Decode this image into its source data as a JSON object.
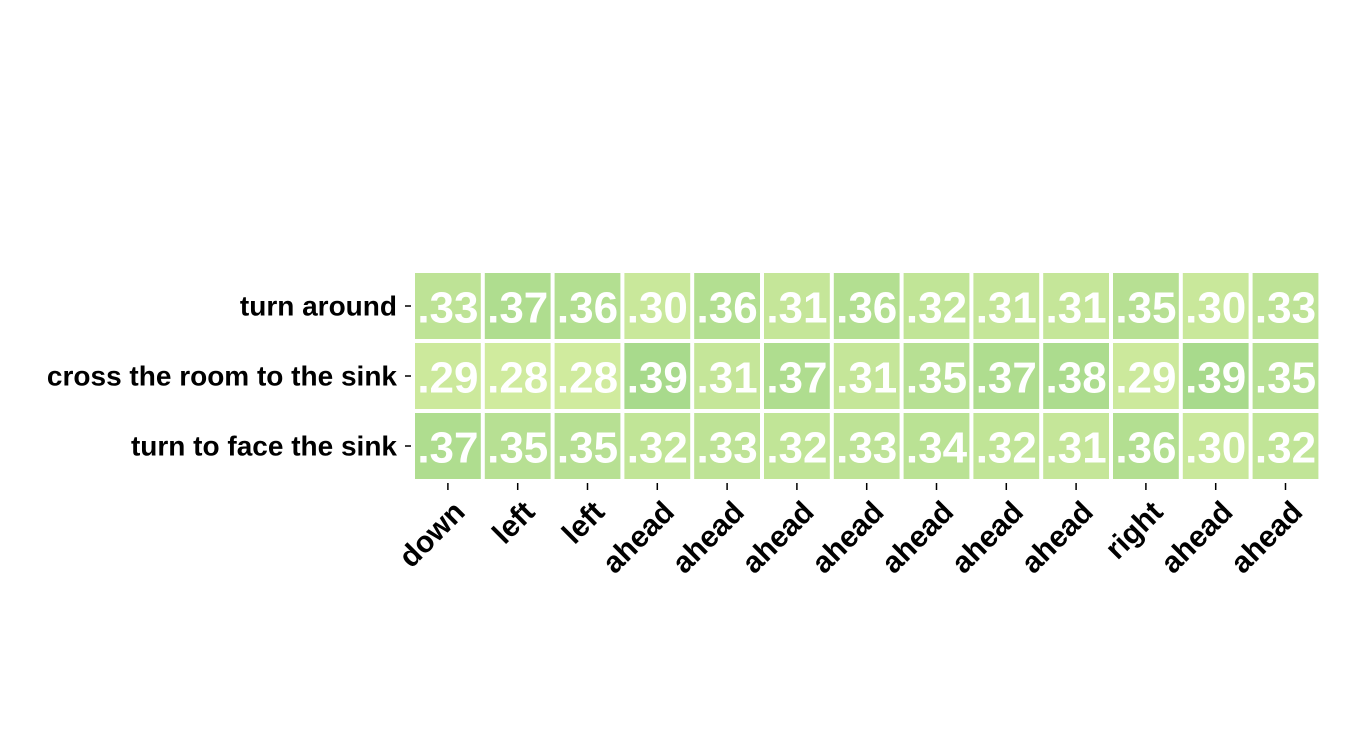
{
  "chart_data": {
    "type": "heatmap",
    "title": "",
    "xlabel": "",
    "ylabel": "",
    "rows": [
      "turn around",
      "cross the room to the sink",
      "turn to face the sink"
    ],
    "columns": [
      "down",
      "left",
      "left",
      "ahead",
      "ahead",
      "ahead",
      "ahead",
      "ahead",
      "ahead",
      "ahead",
      "right",
      "ahead",
      "ahead"
    ],
    "values": [
      [
        0.33,
        0.37,
        0.36,
        0.3,
        0.36,
        0.31,
        0.36,
        0.32,
        0.31,
        0.31,
        0.35,
        0.3,
        0.33
      ],
      [
        0.29,
        0.28,
        0.28,
        0.39,
        0.31,
        0.37,
        0.31,
        0.35,
        0.37,
        0.38,
        0.29,
        0.39,
        0.35
      ],
      [
        0.37,
        0.35,
        0.35,
        0.32,
        0.33,
        0.32,
        0.33,
        0.34,
        0.32,
        0.31,
        0.36,
        0.3,
        0.32
      ]
    ],
    "cell_labels": [
      [
        ".33",
        ".37",
        ".36",
        ".30",
        ".36",
        ".31",
        ".36",
        ".32",
        ".31",
        ".31",
        ".35",
        ".30",
        ".33"
      ],
      [
        ".29",
        ".28",
        ".28",
        ".39",
        ".31",
        ".37",
        ".31",
        ".35",
        ".37",
        ".38",
        ".29",
        ".39",
        ".35"
      ],
      [
        ".37",
        ".35",
        ".35",
        ".32",
        ".33",
        ".32",
        ".33",
        ".34",
        ".32",
        ".31",
        ".36",
        ".30",
        ".32"
      ]
    ],
    "color_scale": {
      "low_value": 0.28,
      "high_value": 0.39,
      "low_color": "#d0eb9e",
      "high_color": "#a8da8c"
    },
    "grid": false,
    "legend": "none"
  }
}
